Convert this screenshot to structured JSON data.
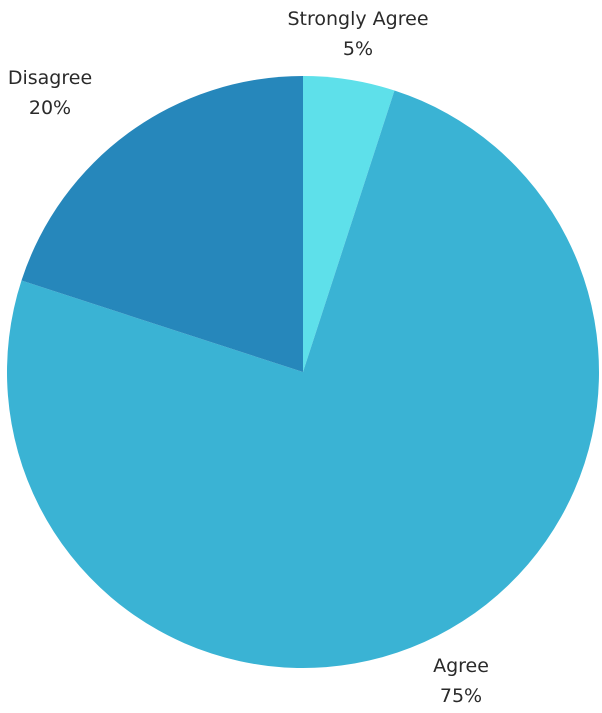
{
  "chart_data": {
    "type": "pie",
    "title": "",
    "slices": [
      {
        "label": "Strongly Agree",
        "value": 5,
        "value_label": "5%",
        "color": "#5ee0ea"
      },
      {
        "label": "Agree",
        "value": 75,
        "value_label": "75%",
        "color": "#3ab3d4"
      },
      {
        "label": "Disagree",
        "value": 20,
        "value_label": "20%",
        "color": "#2687bb"
      }
    ],
    "start_angle": "12 o'clock",
    "direction": "clockwise",
    "legend": "none",
    "labels_position": "outside"
  }
}
